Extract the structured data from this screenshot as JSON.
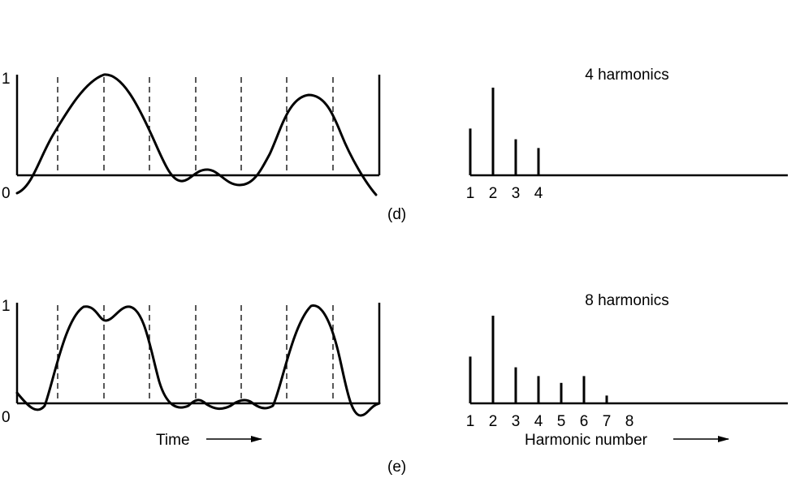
{
  "panels": [
    {
      "id": "d",
      "label": "(d)",
      "y_tick_top": "1",
      "y_tick_bottom": "0",
      "spectrum_title": "4 harmonics",
      "harmonic_ticks": [
        "1",
        "2",
        "3",
        "4"
      ],
      "harmonic_amplitudes": [
        0.48,
        0.9,
        0.37,
        0.28
      ]
    },
    {
      "id": "e",
      "label": "(e)",
      "y_tick_top": "1",
      "y_tick_bottom": "0",
      "spectrum_title": "8 harmonics",
      "harmonic_ticks": [
        "1",
        "2",
        "3",
        "4",
        "5",
        "6",
        "7",
        "8"
      ],
      "harmonic_amplitudes": [
        0.48,
        0.9,
        0.37,
        0.28,
        0.21,
        0.28,
        0.08,
        0.0
      ],
      "time_label": "Time",
      "x_axis_label": "Harmonic number"
    }
  ],
  "arrow_icon": "right-arrow-icon"
}
